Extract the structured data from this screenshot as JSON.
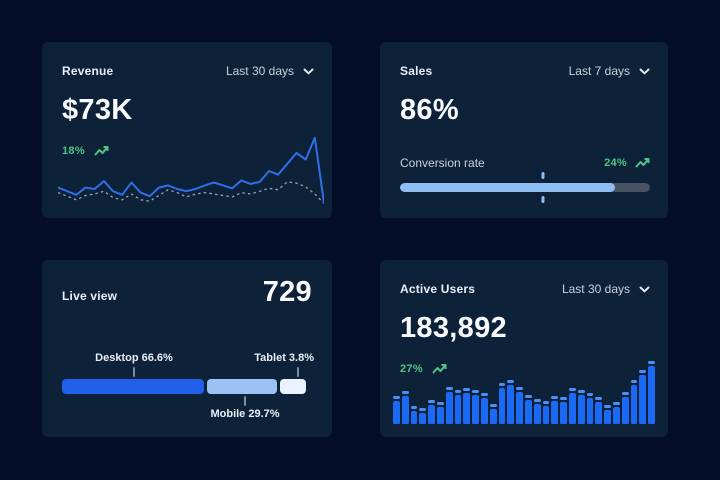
{
  "theme": {
    "page_bg": "#050e28",
    "card_bg": "#0d2239",
    "title_color": "#e9eef6",
    "muted_color": "#c7d2e0",
    "value_color": "#f8fafd",
    "green": "#4ec584",
    "line_blue": "#2e6fe8",
    "dotted_gray": "#96a2b4",
    "bar_blue": "#1b6af5",
    "bar_cap_blue": "#4a90f4",
    "progress_fill": "#8fbef2",
    "progress_track": "#475363",
    "connector_gray": "#7c8ba1",
    "segment_colors": [
      "#2160e8",
      "#9cc2f5",
      "#e8f1fc"
    ]
  },
  "cards": {
    "revenue": {
      "title": "Revenue",
      "range_label": "Last 30 days",
      "value": "$73K",
      "delta": "18%"
    },
    "sales": {
      "title": "Sales",
      "range_label": "Last 7 days",
      "value": "86%",
      "metric_label": "Conversion rate",
      "delta": "24%"
    },
    "live_view": {
      "title": "Live view",
      "value": "729",
      "segments": [
        {
          "label": "Desktop 66.6%"
        },
        {
          "label": "Mobile 29.7%"
        },
        {
          "label": "Tablet 3.8%"
        }
      ]
    },
    "active_users": {
      "title": "Active Users",
      "range_label": "Last 30 days",
      "value": "183,892",
      "delta": "27%"
    }
  },
  "chart_data": [
    {
      "id": "revenue_trend",
      "type": "line",
      "title": "Revenue",
      "x_label": "Last 30 days",
      "ylim": [
        0,
        100
      ],
      "grid": false,
      "legend": false,
      "series": [
        {
          "name": "current",
          "style": "solid",
          "values": [
            27,
            22,
            17,
            27,
            25,
            36,
            22,
            17,
            34,
            20,
            15,
            27,
            30,
            25,
            22,
            25,
            30,
            34,
            30,
            26,
            37,
            32,
            35,
            50,
            45,
            60,
            75,
            66,
            96,
            6
          ]
        },
        {
          "name": "previous",
          "style": "dotted",
          "values": [
            20,
            15,
            10,
            16,
            18,
            22,
            13,
            10,
            18,
            10,
            8,
            16,
            24,
            20,
            14,
            18,
            20,
            18,
            16,
            14,
            20,
            18,
            22,
            26,
            24,
            35,
            33,
            28,
            18,
            5
          ]
        }
      ]
    },
    {
      "id": "sales_conversion",
      "type": "bar",
      "title": "Conversion rate",
      "value_pct": 86,
      "marker_pct": 57
    },
    {
      "id": "live_device_share",
      "type": "bar",
      "title": "Live view device share",
      "categories": [
        "Desktop",
        "Mobile",
        "Tablet"
      ],
      "values": [
        66.6,
        29.7,
        3.8
      ],
      "visual_pct": [
        57.6,
        28.8,
        11.2
      ]
    },
    {
      "id": "active_users_trend",
      "type": "bar",
      "title": "Active Users",
      "x_label": "Last 30 days",
      "ylim": [
        0,
        100
      ],
      "grid": false,
      "values": [
        40,
        48,
        22,
        19,
        32,
        30,
        56,
        50,
        54,
        50,
        44,
        26,
        62,
        68,
        56,
        42,
        34,
        31,
        40,
        38,
        54,
        50,
        44,
        38,
        24,
        29,
        46,
        68,
        84,
        100
      ]
    }
  ]
}
